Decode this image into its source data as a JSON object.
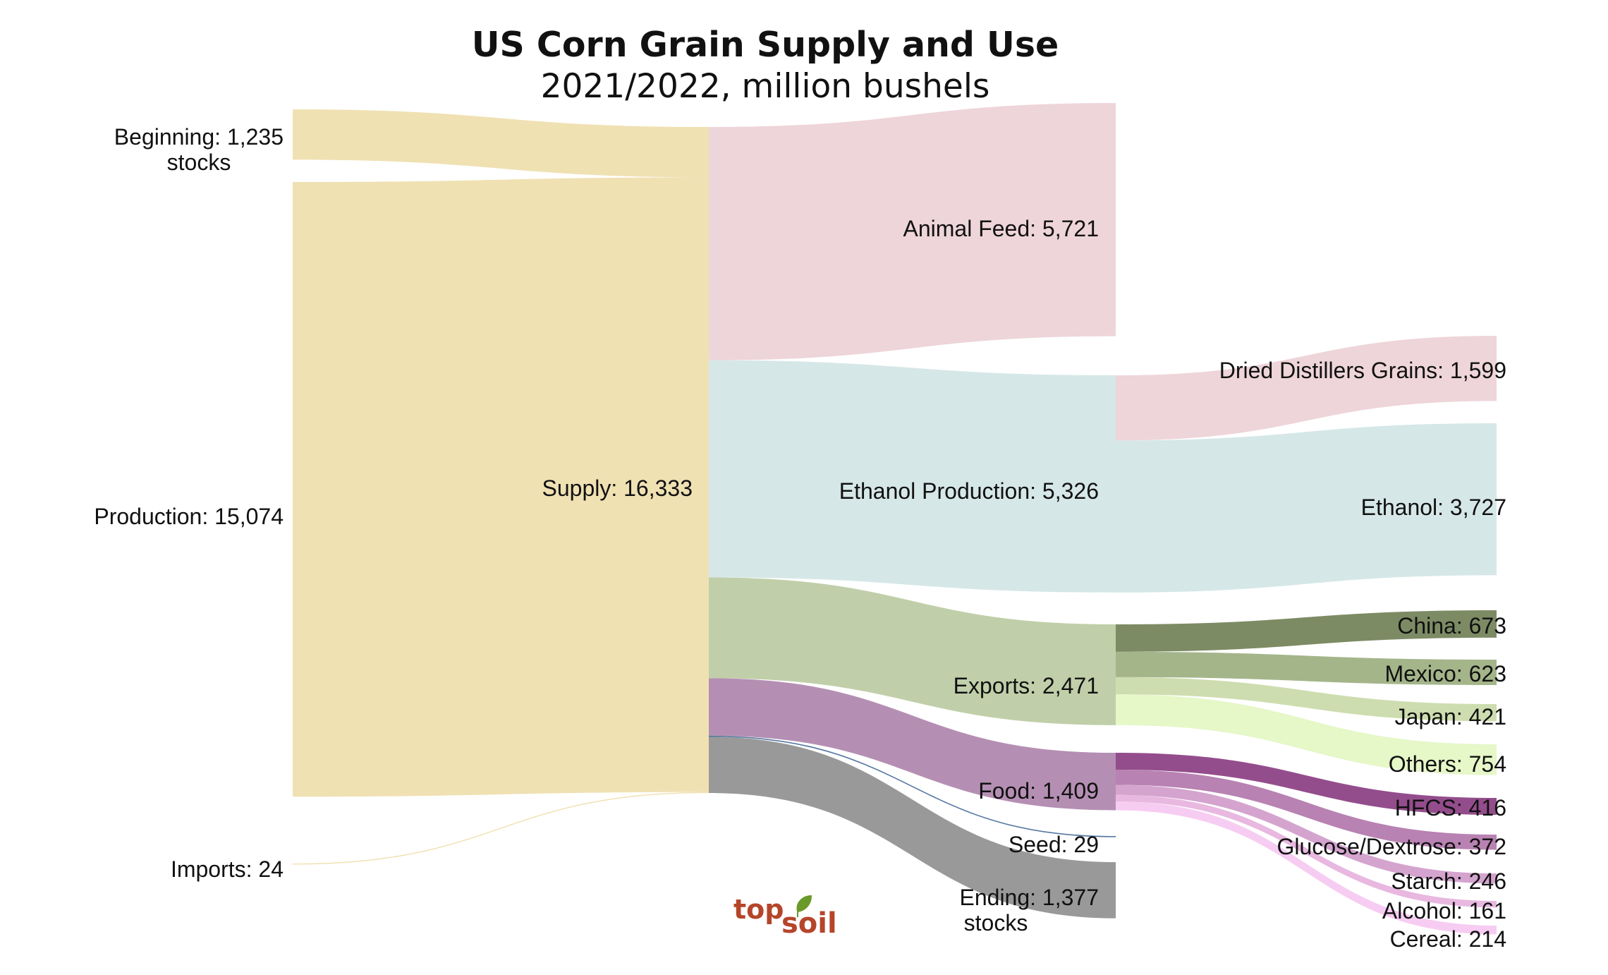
{
  "chart_data": {
    "type": "sankey",
    "title": "US Corn Grain Supply and Use",
    "subtitle": "2021/2022, million bushels",
    "nodes": [
      {
        "id": "beginning",
        "label": "Beginning: 1,235\nstocks",
        "value": 1235,
        "color": "#f0e1b3",
        "column": 0
      },
      {
        "id": "production",
        "label": "Production: 15,074",
        "value": 15074,
        "color": "#f0e1b3",
        "column": 0
      },
      {
        "id": "imports",
        "label": "Imports: 24",
        "value": 24,
        "color": "#f0e1b3",
        "column": 0
      },
      {
        "id": "supply",
        "label": "Supply: 16,333",
        "value": 16333,
        "color": "#f0e1b3",
        "column": 1
      },
      {
        "id": "animal_feed",
        "label": "Animal Feed: 5,721",
        "value": 5721,
        "color": "#eed5da",
        "column": 2
      },
      {
        "id": "ethanol_prod",
        "label": "Ethanol Production: 5,326",
        "value": 5326,
        "color": "#d6e7e7",
        "column": 2
      },
      {
        "id": "exports",
        "label": "Exports: 2,471",
        "value": 2471,
        "color": "#c0cfa9",
        "column": 2
      },
      {
        "id": "food",
        "label": "Food: 1,409",
        "value": 1409,
        "color": "#b58fb3",
        "column": 2
      },
      {
        "id": "seed",
        "label": "Seed: 29",
        "value": 29,
        "color": "#5577a0",
        "column": 2
      },
      {
        "id": "ending",
        "label": "Ending: 1,377\nstocks",
        "value": 1377,
        "color": "#999999",
        "column": 2
      },
      {
        "id": "ddg",
        "label": "Dried Distillers Grains: 1,599",
        "value": 1599,
        "color": "#eed5da",
        "column": 3
      },
      {
        "id": "ethanol",
        "label": "Ethanol: 3,727",
        "value": 3727,
        "color": "#d6e7e7",
        "column": 3
      },
      {
        "id": "china",
        "label": "China: 673",
        "value": 673,
        "color": "#7d8b64",
        "column": 3
      },
      {
        "id": "mexico",
        "label": "Mexico: 623",
        "value": 623,
        "color": "#a4b58a",
        "column": 3
      },
      {
        "id": "japan",
        "label": "Japan: 421",
        "value": 421,
        "color": "#ceddaf",
        "column": 3
      },
      {
        "id": "others",
        "label": "Others: 754",
        "value": 754,
        "color": "#e6f7c8",
        "column": 3
      },
      {
        "id": "hfcs",
        "label": "HFCS: 416",
        "value": 416,
        "color": "#944d8c",
        "column": 3
      },
      {
        "id": "glucose",
        "label": "Glucose/Dextrose: 372",
        "value": 372,
        "color": "#b882b2",
        "column": 3
      },
      {
        "id": "starch",
        "label": "Starch: 246",
        "value": 246,
        "color": "#d4a4cf",
        "column": 3
      },
      {
        "id": "alcohol",
        "label": "Alcohol: 161",
        "value": 161,
        "color": "#e8b8e0",
        "column": 3
      },
      {
        "id": "cereal",
        "label": "Cereal: 214",
        "value": 214,
        "color": "#f7ccf2",
        "column": 3
      }
    ],
    "links": [
      {
        "source": "beginning",
        "target": "supply",
        "value": 1235
      },
      {
        "source": "production",
        "target": "supply",
        "value": 15074
      },
      {
        "source": "imports",
        "target": "supply",
        "value": 24
      },
      {
        "source": "supply",
        "target": "animal_feed",
        "value": 5721
      },
      {
        "source": "supply",
        "target": "ethanol_prod",
        "value": 5326
      },
      {
        "source": "supply",
        "target": "exports",
        "value": 2471
      },
      {
        "source": "supply",
        "target": "food",
        "value": 1409
      },
      {
        "source": "supply",
        "target": "seed",
        "value": 29
      },
      {
        "source": "supply",
        "target": "ending",
        "value": 1377
      },
      {
        "source": "ethanol_prod",
        "target": "ddg",
        "value": 1599
      },
      {
        "source": "ethanol_prod",
        "target": "ethanol",
        "value": 3727
      },
      {
        "source": "exports",
        "target": "china",
        "value": 673
      },
      {
        "source": "exports",
        "target": "mexico",
        "value": 623
      },
      {
        "source": "exports",
        "target": "japan",
        "value": 421
      },
      {
        "source": "exports",
        "target": "others",
        "value": 754
      },
      {
        "source": "food",
        "target": "hfcs",
        "value": 416
      },
      {
        "source": "food",
        "target": "glucose",
        "value": 372
      },
      {
        "source": "food",
        "target": "starch",
        "value": 246
      },
      {
        "source": "food",
        "target": "alcohol",
        "value": 161
      },
      {
        "source": "food",
        "target": "cereal",
        "value": 214
      }
    ]
  },
  "logo": {
    "part1": "top",
    "part2": "soil",
    "leaf_color": "#6a9a2a",
    "text_color": "#b5452a"
  }
}
